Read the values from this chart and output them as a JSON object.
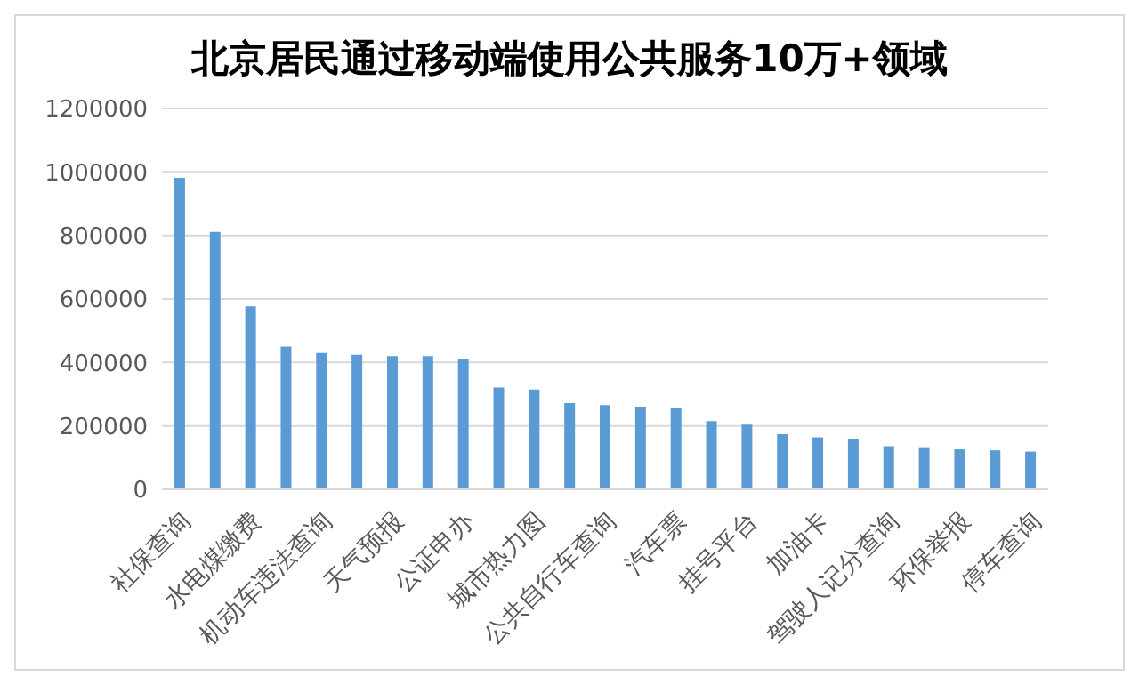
{
  "chart_data": {
    "type": "bar",
    "title": "北京居民通过移动端使用公共服务10万+领域",
    "categories": [
      "社保查询",
      null,
      "水电煤缴费",
      null,
      "机动车违法查询",
      null,
      "天气预报",
      null,
      "公证申办",
      null,
      "城市热力图",
      null,
      "公共自行车查询",
      null,
      "汽车票",
      null,
      "挂号平台",
      null,
      "加油卡",
      null,
      "驾驶人记分查询",
      null,
      "环保举报",
      null,
      "停车查询"
    ],
    "values": [
      981000,
      811000,
      577000,
      450000,
      430000,
      424000,
      420000,
      420000,
      410000,
      321000,
      315000,
      272000,
      266000,
      260000,
      255000,
      215000,
      204000,
      174000,
      164000,
      157000,
      136000,
      130000,
      126000,
      123000,
      119000
    ],
    "color": "#5b9bd5",
    "ylim": [
      0,
      1200000
    ],
    "yticks": [
      0,
      200000,
      400000,
      600000,
      800000,
      1000000,
      1200000
    ],
    "grid": "y"
  }
}
